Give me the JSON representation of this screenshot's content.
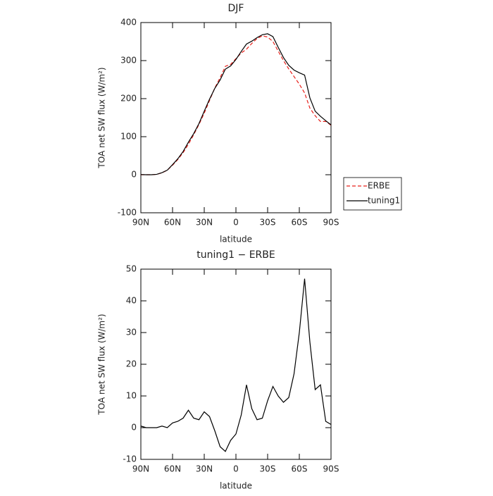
{
  "chart_data": [
    {
      "type": "line",
      "title": "DJF",
      "xlabel": "latitude",
      "ylabel": "TOA net SW flux (W/m²)",
      "x": [
        90,
        85,
        80,
        75,
        70,
        65,
        60,
        55,
        50,
        45,
        40,
        35,
        30,
        25,
        20,
        15,
        10,
        5,
        0,
        -5,
        -10,
        -15,
        -20,
        -25,
        -30,
        -35,
        -40,
        -45,
        -50,
        -55,
        -60,
        -65,
        -70,
        -75,
        -80,
        -85,
        -90
      ],
      "xlim": [
        90,
        -90
      ],
      "xticks": [
        {
          "value": 90,
          "label": "90N"
        },
        {
          "value": 60,
          "label": "60N"
        },
        {
          "value": 30,
          "label": "30N"
        },
        0,
        {
          "value": -30,
          "label": "30S"
        },
        {
          "value": -60,
          "label": "60S"
        },
        {
          "value": -90,
          "label": "90S"
        }
      ],
      "ylim": [
        -100,
        400
      ],
      "yticks": [
        -100,
        0,
        100,
        200,
        300,
        400
      ],
      "legend": "right",
      "series": [
        {
          "name": "ERBE",
          "color": "#e8201a",
          "dashed": true,
          "values": [
            0,
            0,
            0,
            1,
            5,
            12,
            25,
            40,
            58,
            80,
            105,
            132,
            162,
            195,
            228,
            255,
            285,
            290,
            305,
            320,
            330,
            345,
            358,
            365,
            362,
            350,
            325,
            300,
            278,
            258,
            238,
            215,
            175,
            155,
            140,
            140,
            130
          ]
        },
        {
          "name": "tuning1",
          "color": "#000000",
          "dashed": false,
          "values": [
            0.5,
            0,
            0,
            1,
            5.5,
            12,
            26.5,
            42,
            61,
            85.5,
            108,
            134.5,
            167,
            198.5,
            227,
            249,
            277.5,
            286,
            303,
            324,
            343.5,
            351,
            360.5,
            368,
            370.5,
            363,
            335,
            308,
            287.5,
            275,
            268,
            262,
            202,
            167,
            153.5,
            142,
            131
          ]
        }
      ]
    },
    {
      "type": "line",
      "title": "tuning1 − ERBE",
      "xlabel": "latitude",
      "ylabel": "TOA net SW flux (W/m²)",
      "x": [
        90,
        85,
        80,
        75,
        70,
        65,
        60,
        55,
        50,
        45,
        40,
        35,
        30,
        25,
        20,
        15,
        10,
        5,
        0,
        -5,
        -10,
        -15,
        -20,
        -25,
        -30,
        -35,
        -40,
        -45,
        -50,
        -55,
        -60,
        -65,
        -70,
        -75,
        -80,
        -85,
        -90
      ],
      "xlim": [
        90,
        -90
      ],
      "xticks": [
        {
          "value": 90,
          "label": "90N"
        },
        {
          "value": 60,
          "label": "60N"
        },
        {
          "value": 30,
          "label": "30N"
        },
        0,
        {
          "value": -30,
          "label": "30S"
        },
        {
          "value": -60,
          "label": "60S"
        },
        {
          "value": -90,
          "label": "90S"
        }
      ],
      "ylim": [
        -10,
        50
      ],
      "yticks": [
        -10,
        0,
        10,
        20,
        30,
        40,
        50
      ],
      "series": [
        {
          "color": "#000000",
          "dashed": false,
          "values": [
            0.5,
            0,
            0,
            0,
            0.5,
            0,
            1.5,
            2,
            3,
            5.5,
            3,
            2.5,
            5,
            3.5,
            -1,
            -6,
            -7.5,
            -4,
            -2,
            4,
            13.5,
            6,
            2.5,
            3,
            8.5,
            13,
            10,
            8,
            9.5,
            17,
            30,
            47,
            27,
            12,
            13.5,
            2,
            1
          ]
        }
      ]
    }
  ]
}
